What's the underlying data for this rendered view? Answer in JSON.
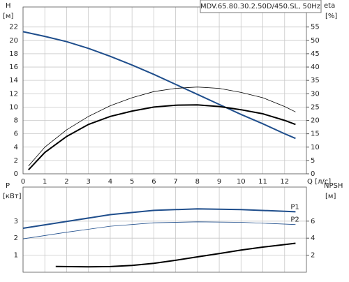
{
  "chart_data": [
    {
      "type": "line",
      "title": "MDV.65.80.30.2.50D/450.SL, 50Hz",
      "xlabel": "Q [л/с]",
      "ylabel": "H",
      "yunit": "[м]",
      "y2label": "eta",
      "y2unit": "[%]",
      "xlim": [
        0,
        13
      ],
      "xticks": [
        0,
        1,
        2,
        3,
        4,
        5,
        6,
        7,
        8,
        9,
        10,
        11,
        12
      ],
      "ylim": [
        0,
        25
      ],
      "yticks": [
        0,
        2,
        4,
        6,
        8,
        10,
        12,
        14,
        16,
        18,
        20,
        22
      ],
      "y2lim": [
        0,
        62.5
      ],
      "y2ticks": [
        0,
        5,
        10,
        15,
        20,
        25,
        30,
        35,
        40,
        45,
        50,
        55
      ],
      "grid": true,
      "series": [
        {
          "color": "#1f4e8c",
          "width": 2,
          "x": [
            0,
            1,
            2,
            3,
            4,
            5,
            6,
            7,
            8,
            9,
            10,
            11,
            12,
            12.5
          ],
          "values": [
            21.3,
            20.6,
            19.8,
            18.8,
            17.6,
            16.3,
            14.9,
            13.4,
            11.9,
            10.4,
            8.9,
            7.5,
            6.0,
            5.3
          ]
        },
        {
          "color": "#000000",
          "width": 0.8,
          "axis": "y2",
          "x": [
            0.25,
            1,
            2,
            3,
            4,
            5,
            6,
            7,
            8,
            9,
            10,
            11,
            12,
            12.5
          ],
          "values": [
            2.9,
            10,
            16.5,
            21.5,
            25.5,
            28.5,
            30.8,
            32,
            32.5,
            32,
            30.5,
            28.5,
            25.2,
            23.2
          ]
        },
        {
          "color": "#000000",
          "width": 2,
          "axis": "y2",
          "x": [
            0.25,
            1,
            2,
            3,
            4,
            5,
            6,
            7,
            8,
            9,
            10,
            11,
            12,
            12.5
          ],
          "values": [
            1.5,
            8,
            14,
            18.5,
            21.5,
            23.5,
            25,
            25.7,
            25.8,
            25.2,
            24,
            22.5,
            20,
            18.5
          ]
        }
      ]
    },
    {
      "type": "line",
      "ylabel": "P",
      "yunit": "[кВт]",
      "y2label": "NPSH",
      "y2unit": "[м]",
      "xlim": [
        0,
        13
      ],
      "ylim": [
        0,
        5
      ],
      "yticks": [
        1,
        2,
        3
      ],
      "y2lim": [
        0,
        10
      ],
      "y2ticks": [
        2,
        4,
        6
      ],
      "grid": true,
      "series": [
        {
          "name": "P1",
          "color": "#1f4e8c",
          "width": 2,
          "x": [
            0,
            2,
            4,
            6,
            8,
            10,
            12.5
          ],
          "values": [
            2.58,
            2.98,
            3.38,
            3.63,
            3.72,
            3.68,
            3.55
          ]
        },
        {
          "name": "P2",
          "color": "#1f4e8c",
          "width": 0.8,
          "x": [
            0,
            2,
            4,
            6,
            8,
            10,
            12.5
          ],
          "values": [
            1.96,
            2.35,
            2.7,
            2.9,
            2.96,
            2.93,
            2.8
          ]
        },
        {
          "color": "#000000",
          "width": 2,
          "axis": "y2",
          "x": [
            1.5,
            3,
            4,
            5,
            6,
            7,
            8,
            9,
            10,
            11,
            12,
            12.5
          ],
          "values": [
            0.67,
            0.64,
            0.66,
            0.8,
            1.05,
            1.4,
            1.8,
            2.2,
            2.6,
            2.95,
            3.25,
            3.4
          ]
        }
      ]
    }
  ]
}
